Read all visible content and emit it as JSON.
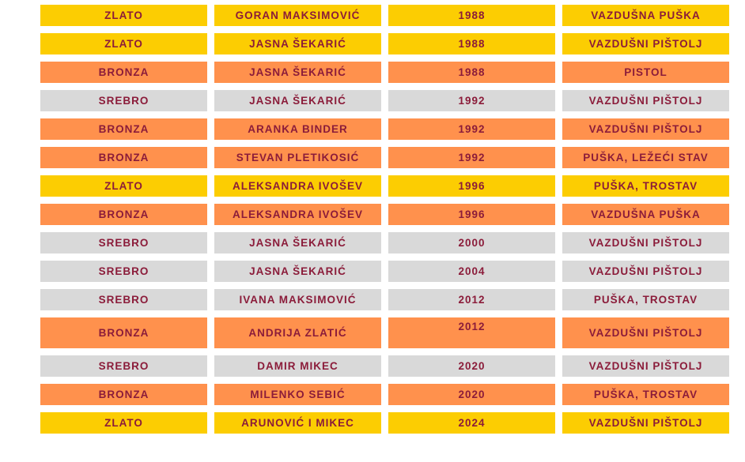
{
  "colors": {
    "ZLATO": "#fccd02",
    "SREBRO": "#d9d9d9",
    "BRONZA": "#ff914d",
    "text": "#8b1c3a"
  },
  "rows": [
    {
      "medal": "ZLATO",
      "athlete": "GORAN MAKSIMOVIĆ",
      "year": "1988",
      "discipline": "VAZDUŠNA PUŠKA"
    },
    {
      "medal": "ZLATO",
      "athlete": "JASNA ŠEKARIĆ",
      "year": "1988",
      "discipline": "VAZDUŠNI PIŠTOLJ"
    },
    {
      "medal": "BRONZA",
      "athlete": "JASNA ŠEKARIĆ",
      "year": "1988",
      "discipline": "PISTOL"
    },
    {
      "medal": "SREBRO",
      "athlete": "JASNA ŠEKARIĆ",
      "year": "1992",
      "discipline": "VAZDUŠNI PIŠTOLJ"
    },
    {
      "medal": "BRONZA",
      "athlete": "ARANKA BINDER",
      "year": "1992",
      "discipline": "VAZDUŠNI PIŠTOLJ"
    },
    {
      "medal": "BRONZA",
      "athlete": "STEVAN PLETIKOSIĆ",
      "year": "1992",
      "discipline": "PUŠKA, LEŽEĆI STAV"
    },
    {
      "medal": "ZLATO",
      "athlete": "ALEKSANDRA IVOŠEV",
      "year": "1996",
      "discipline": "PUŠKA, TROSTAV"
    },
    {
      "medal": "BRONZA",
      "athlete": "ALEKSANDRA IVOŠEV",
      "year": "1996",
      "discipline": "VAZDUŠNA PUŠKA"
    },
    {
      "medal": "SREBRO",
      "athlete": "JASNA ŠEKARIĆ",
      "year": "2000",
      "discipline": "VAZDUŠNI PIŠTOLJ"
    },
    {
      "medal": "SREBRO",
      "athlete": "JASNA ŠEKARIĆ",
      "year": "2004",
      "discipline": "VAZDUŠNI PIŠTOLJ"
    },
    {
      "medal": "SREBRO",
      "athlete": "IVANA MAKSIMOVIĆ",
      "year": "2012",
      "discipline": "PUŠKA, TROSTAV"
    },
    {
      "medal": "BRONZA",
      "athlete": "ANDRIJA ZLATIĆ",
      "year": "2012",
      "discipline": "VAZDUŠNI PIŠTOLJ"
    },
    {
      "medal": "SREBRO",
      "athlete": "DAMIR MIKEC",
      "year": "2020",
      "discipline": "VAZDUŠNI PIŠTOLJ"
    },
    {
      "medal": "BRONZA",
      "athlete": "MILENKO SEBIĆ",
      "year": "2020",
      "discipline": "PUŠKA, TROSTAV"
    },
    {
      "medal": "ZLATO",
      "athlete": "ARUNOVIĆ I MIKEC",
      "year": "2024",
      "discipline": "VAZDUŠNI PIŠTOLJ"
    }
  ]
}
